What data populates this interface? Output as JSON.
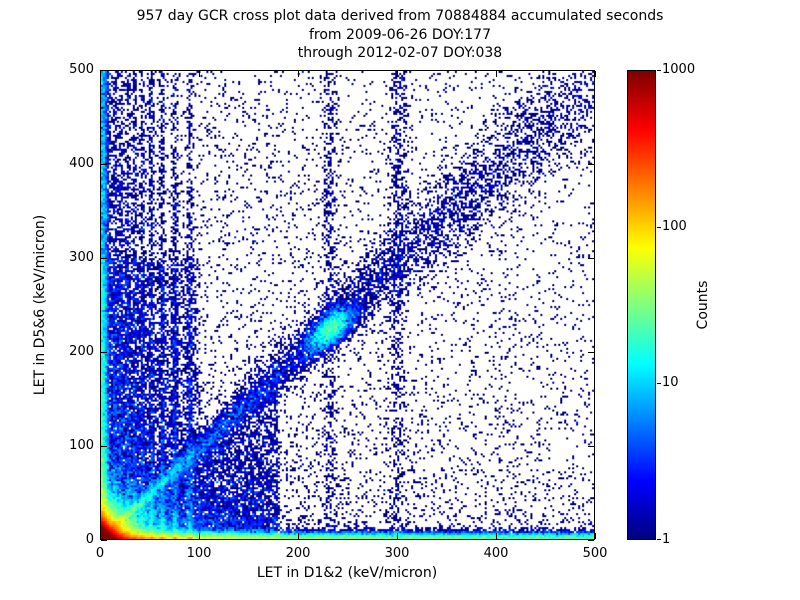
{
  "figure": {
    "background": "#ffffff"
  },
  "chart_data": {
    "type": "heatmap",
    "title": "957 day GCR cross plot data derived from 70884884 accumulated seconds",
    "subtitle": [
      "from 2009-06-26 DOY:177",
      "through 2012-02-07 DOY:038"
    ],
    "xlabel": "LET in D1&2 (keV/micron)",
    "ylabel": "LET in D5&6 (keV/micron)",
    "xlim": [
      0,
      500
    ],
    "ylim": [
      0,
      500
    ],
    "xticks": [
      "0",
      "100",
      "200",
      "300",
      "400",
      "500"
    ],
    "yticks": [
      "0",
      "100",
      "200",
      "300",
      "400",
      "500"
    ],
    "grid": false,
    "legend": "none",
    "colorbar": {
      "label": "Counts",
      "scale": "log",
      "range": [
        1,
        1000
      ],
      "ticks": [
        "1",
        "10",
        "100",
        "1000"
      ],
      "colormap": "jet",
      "color_min": "#000080",
      "color_max": "#800000"
    },
    "seed": 42,
    "features": [
      {
        "kind": "background",
        "n": 6500,
        "xpow": 1.9,
        "ypow": 1.9
      },
      {
        "kind": "background",
        "n": 1800,
        "xpow": 1.0,
        "ypow": 1.0
      },
      {
        "kind": "core",
        "n": 52000,
        "scale": 6
      },
      {
        "kind": "core",
        "n": 20000,
        "scale": 14
      },
      {
        "kind": "band_h",
        "n": 20000,
        "xpow": 2.6,
        "ysig": 4
      },
      {
        "kind": "band_h",
        "n": 6000,
        "xpow": 1.2,
        "ysig": 3
      },
      {
        "kind": "band_v",
        "n": 9000,
        "ypow": 2.4,
        "xsig": 3,
        "x0": 2
      },
      {
        "kind": "band_v",
        "n": 3000,
        "ypow": 1.1,
        "xsig": 2.5,
        "x0": 2
      },
      {
        "kind": "band_v",
        "n": 700,
        "ypow": 0.8,
        "xsig": 5,
        "x0": 302
      },
      {
        "kind": "streaks",
        "xs": [
          14,
          20,
          27,
          34,
          42,
          51,
          62,
          75,
          90
        ],
        "n_each": 1100,
        "ypow": 2.8,
        "xsig": 1.6
      },
      {
        "kind": "streaks",
        "xs": [
          232
        ],
        "n_each": 550,
        "ypow": 0.9,
        "xsig": 4
      },
      {
        "kind": "wedge",
        "n": 14000,
        "xmax": 180,
        "xpow": 1.6,
        "ypow": 1.8
      },
      {
        "kind": "wedge2",
        "n": 8000,
        "ymax": 300,
        "xcap": 100,
        "ypow": 1.5,
        "xpow": 1.8
      },
      {
        "kind": "diagonal",
        "n": 9000,
        "tpow": 1.7,
        "spread": 0.05
      },
      {
        "kind": "cluster",
        "n": 3500,
        "cx": 233,
        "cy": 224,
        "s_along": 16,
        "s_cross": 7
      }
    ]
  }
}
